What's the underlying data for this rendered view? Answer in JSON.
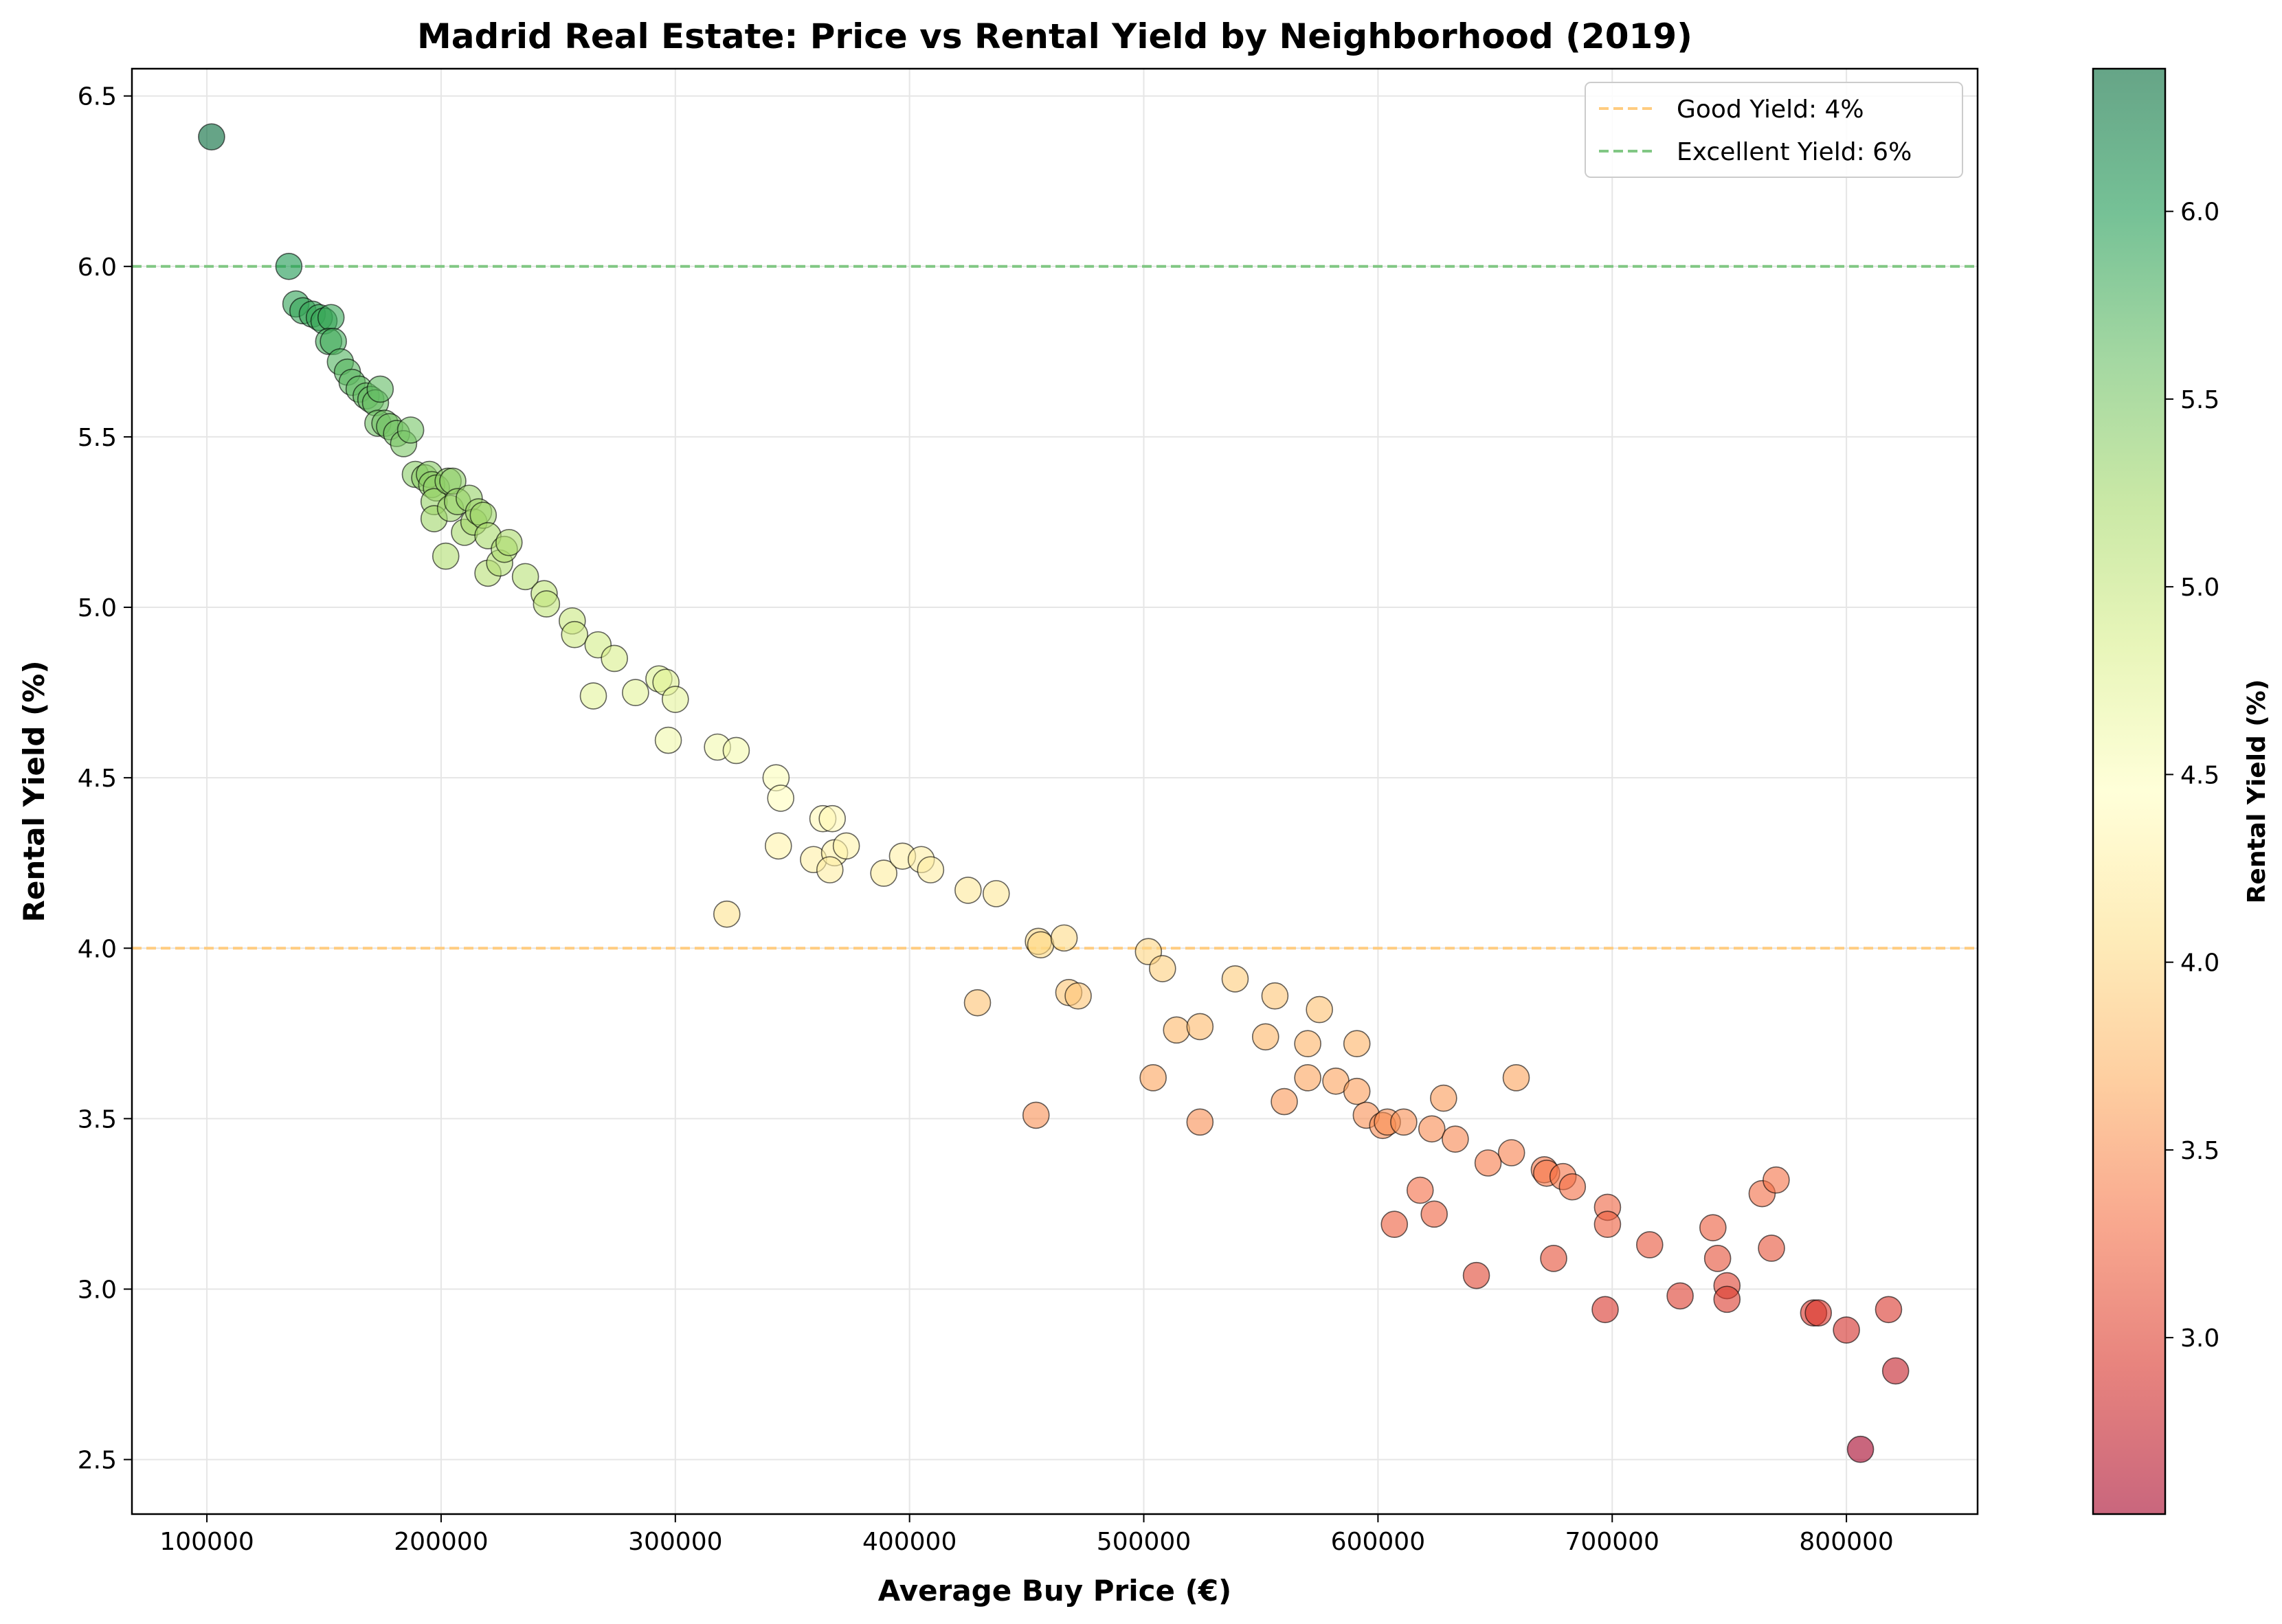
{
  "chart_data": {
    "type": "scatter",
    "title": "Madrid Real Estate: Price vs Rental Yield by Neighborhood (2019)",
    "xlabel": "Average Buy Price (€)",
    "ylabel": "Rental Yield (%)",
    "xlim": [
      68000,
      856000
    ],
    "ylim": [
      2.34,
      6.58
    ],
    "xticks": [
      100000,
      200000,
      300000,
      400000,
      500000,
      600000,
      700000,
      800000
    ],
    "yticks": [
      2.5,
      3.0,
      3.5,
      4.0,
      4.5,
      5.0,
      5.5,
      6.0,
      6.5
    ],
    "grid": true,
    "colormap": "RdYlGn",
    "color_range": [
      2.53,
      6.38
    ],
    "colorbar": {
      "label": "Rental Yield (%)",
      "ticks": [
        3.0,
        3.5,
        4.0,
        4.5,
        5.0,
        5.5,
        6.0
      ]
    },
    "reference_lines": [
      {
        "label": "Good Yield: 4%",
        "y": 4.0,
        "color": "#ffcc80"
      },
      {
        "label": "Excellent Yield: 6%",
        "y": 6.0,
        "color": "#81c784"
      }
    ],
    "legend_position": "upper right",
    "points": [
      [
        102000,
        6.38
      ],
      [
        135000,
        6.0
      ],
      [
        138000,
        5.89
      ],
      [
        141000,
        5.87
      ],
      [
        145000,
        5.86
      ],
      [
        148000,
        5.85
      ],
      [
        150000,
        5.84
      ],
      [
        153000,
        5.85
      ],
      [
        152000,
        5.78
      ],
      [
        154000,
        5.78
      ],
      [
        157000,
        5.72
      ],
      [
        160000,
        5.69
      ],
      [
        162000,
        5.66
      ],
      [
        165000,
        5.64
      ],
      [
        168000,
        5.62
      ],
      [
        170000,
        5.61
      ],
      [
        172000,
        5.6
      ],
      [
        174000,
        5.64
      ],
      [
        173000,
        5.54
      ],
      [
        176000,
        5.54
      ],
      [
        178000,
        5.53
      ],
      [
        181000,
        5.51
      ],
      [
        184000,
        5.48
      ],
      [
        187000,
        5.52
      ],
      [
        189000,
        5.39
      ],
      [
        193000,
        5.38
      ],
      [
        195000,
        5.39
      ],
      [
        196000,
        5.36
      ],
      [
        198000,
        5.35
      ],
      [
        197000,
        5.31
      ],
      [
        197000,
        5.26
      ],
      [
        203000,
        5.37
      ],
      [
        205000,
        5.37
      ],
      [
        204000,
        5.29
      ],
      [
        207000,
        5.31
      ],
      [
        210000,
        5.22
      ],
      [
        212000,
        5.32
      ],
      [
        214000,
        5.25
      ],
      [
        216000,
        5.28
      ],
      [
        218000,
        5.27
      ],
      [
        220000,
        5.21
      ],
      [
        202000,
        5.15
      ],
      [
        220000,
        5.1
      ],
      [
        225000,
        5.13
      ],
      [
        227000,
        5.17
      ],
      [
        229000,
        5.19
      ],
      [
        236000,
        5.09
      ],
      [
        244000,
        5.04
      ],
      [
        245000,
        5.01
      ],
      [
        256000,
        4.96
      ],
      [
        257000,
        4.92
      ],
      [
        267000,
        4.89
      ],
      [
        274000,
        4.85
      ],
      [
        265000,
        4.74
      ],
      [
        283000,
        4.75
      ],
      [
        293000,
        4.79
      ],
      [
        296000,
        4.78
      ],
      [
        300000,
        4.73
      ],
      [
        297000,
        4.61
      ],
      [
        318000,
        4.59
      ],
      [
        326000,
        4.58
      ],
      [
        343000,
        4.5
      ],
      [
        345000,
        4.44
      ],
      [
        344000,
        4.3
      ],
      [
        322000,
        4.1
      ],
      [
        359000,
        4.26
      ],
      [
        363000,
        4.38
      ],
      [
        367000,
        4.38
      ],
      [
        368000,
        4.28
      ],
      [
        366000,
        4.23
      ],
      [
        373000,
        4.3
      ],
      [
        389000,
        4.22
      ],
      [
        397000,
        4.27
      ],
      [
        405000,
        4.26
      ],
      [
        409000,
        4.23
      ],
      [
        425000,
        4.17
      ],
      [
        437000,
        4.16
      ],
      [
        455000,
        4.02
      ],
      [
        456000,
        4.01
      ],
      [
        466000,
        4.03
      ],
      [
        429000,
        3.84
      ],
      [
        468000,
        3.87
      ],
      [
        472000,
        3.86
      ],
      [
        502000,
        3.99
      ],
      [
        508000,
        3.94
      ],
      [
        539000,
        3.91
      ],
      [
        556000,
        3.86
      ],
      [
        575000,
        3.82
      ],
      [
        514000,
        3.76
      ],
      [
        524000,
        3.77
      ],
      [
        552000,
        3.74
      ],
      [
        570000,
        3.72
      ],
      [
        591000,
        3.72
      ],
      [
        504000,
        3.62
      ],
      [
        570000,
        3.62
      ],
      [
        582000,
        3.61
      ],
      [
        659000,
        3.62
      ],
      [
        560000,
        3.55
      ],
      [
        591000,
        3.58
      ],
      [
        628000,
        3.56
      ],
      [
        454000,
        3.51
      ],
      [
        524000,
        3.49
      ],
      [
        595000,
        3.51
      ],
      [
        602000,
        3.48
      ],
      [
        604000,
        3.49
      ],
      [
        611000,
        3.49
      ],
      [
        623000,
        3.47
      ],
      [
        633000,
        3.44
      ],
      [
        657000,
        3.4
      ],
      [
        647000,
        3.37
      ],
      [
        671000,
        3.35
      ],
      [
        672000,
        3.34
      ],
      [
        679000,
        3.33
      ],
      [
        683000,
        3.3
      ],
      [
        618000,
        3.29
      ],
      [
        624000,
        3.22
      ],
      [
        698000,
        3.24
      ],
      [
        698000,
        3.19
      ],
      [
        607000,
        3.19
      ],
      [
        716000,
        3.13
      ],
      [
        743000,
        3.18
      ],
      [
        745000,
        3.09
      ],
      [
        764000,
        3.28
      ],
      [
        770000,
        3.32
      ],
      [
        768000,
        3.12
      ],
      [
        675000,
        3.09
      ],
      [
        642000,
        3.04
      ],
      [
        729000,
        2.98
      ],
      [
        749000,
        3.01
      ],
      [
        749000,
        2.97
      ],
      [
        697000,
        2.94
      ],
      [
        786000,
        2.93
      ],
      [
        788000,
        2.93
      ],
      [
        800000,
        2.88
      ],
      [
        818000,
        2.94
      ],
      [
        821000,
        2.76
      ],
      [
        806000,
        2.53
      ]
    ]
  }
}
